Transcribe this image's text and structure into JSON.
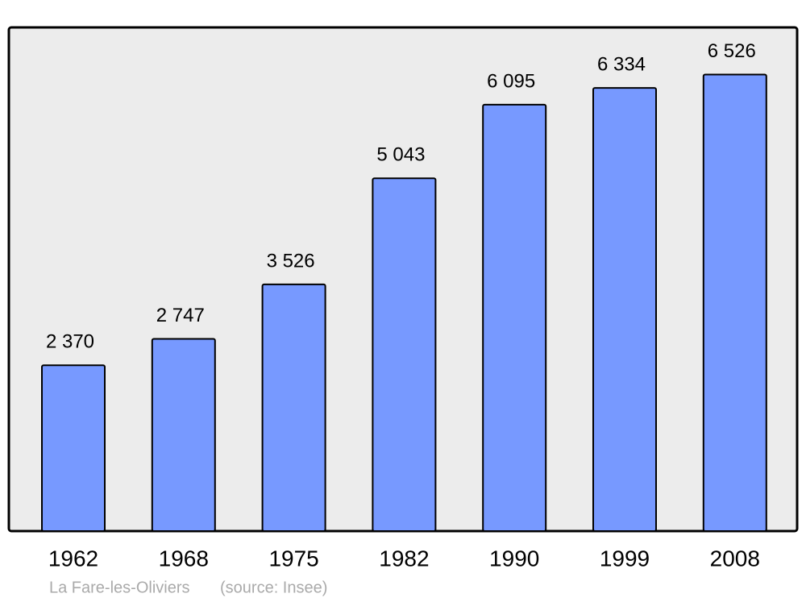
{
  "chart_data": {
    "type": "bar",
    "categories": [
      "1962",
      "1968",
      "1975",
      "1982",
      "1990",
      "1999",
      "2008"
    ],
    "values": [
      2370,
      2747,
      3526,
      5043,
      6095,
      6334,
      6526
    ],
    "value_labels": [
      "2 370",
      "2 747",
      "3 526",
      "5 043",
      "6 095",
      "6 334",
      "6 526"
    ],
    "color": "#7799ff",
    "ylim": [
      0,
      7200
    ],
    "caption": "La Fare-les-Oliviers",
    "source": "(source: Insee)"
  }
}
